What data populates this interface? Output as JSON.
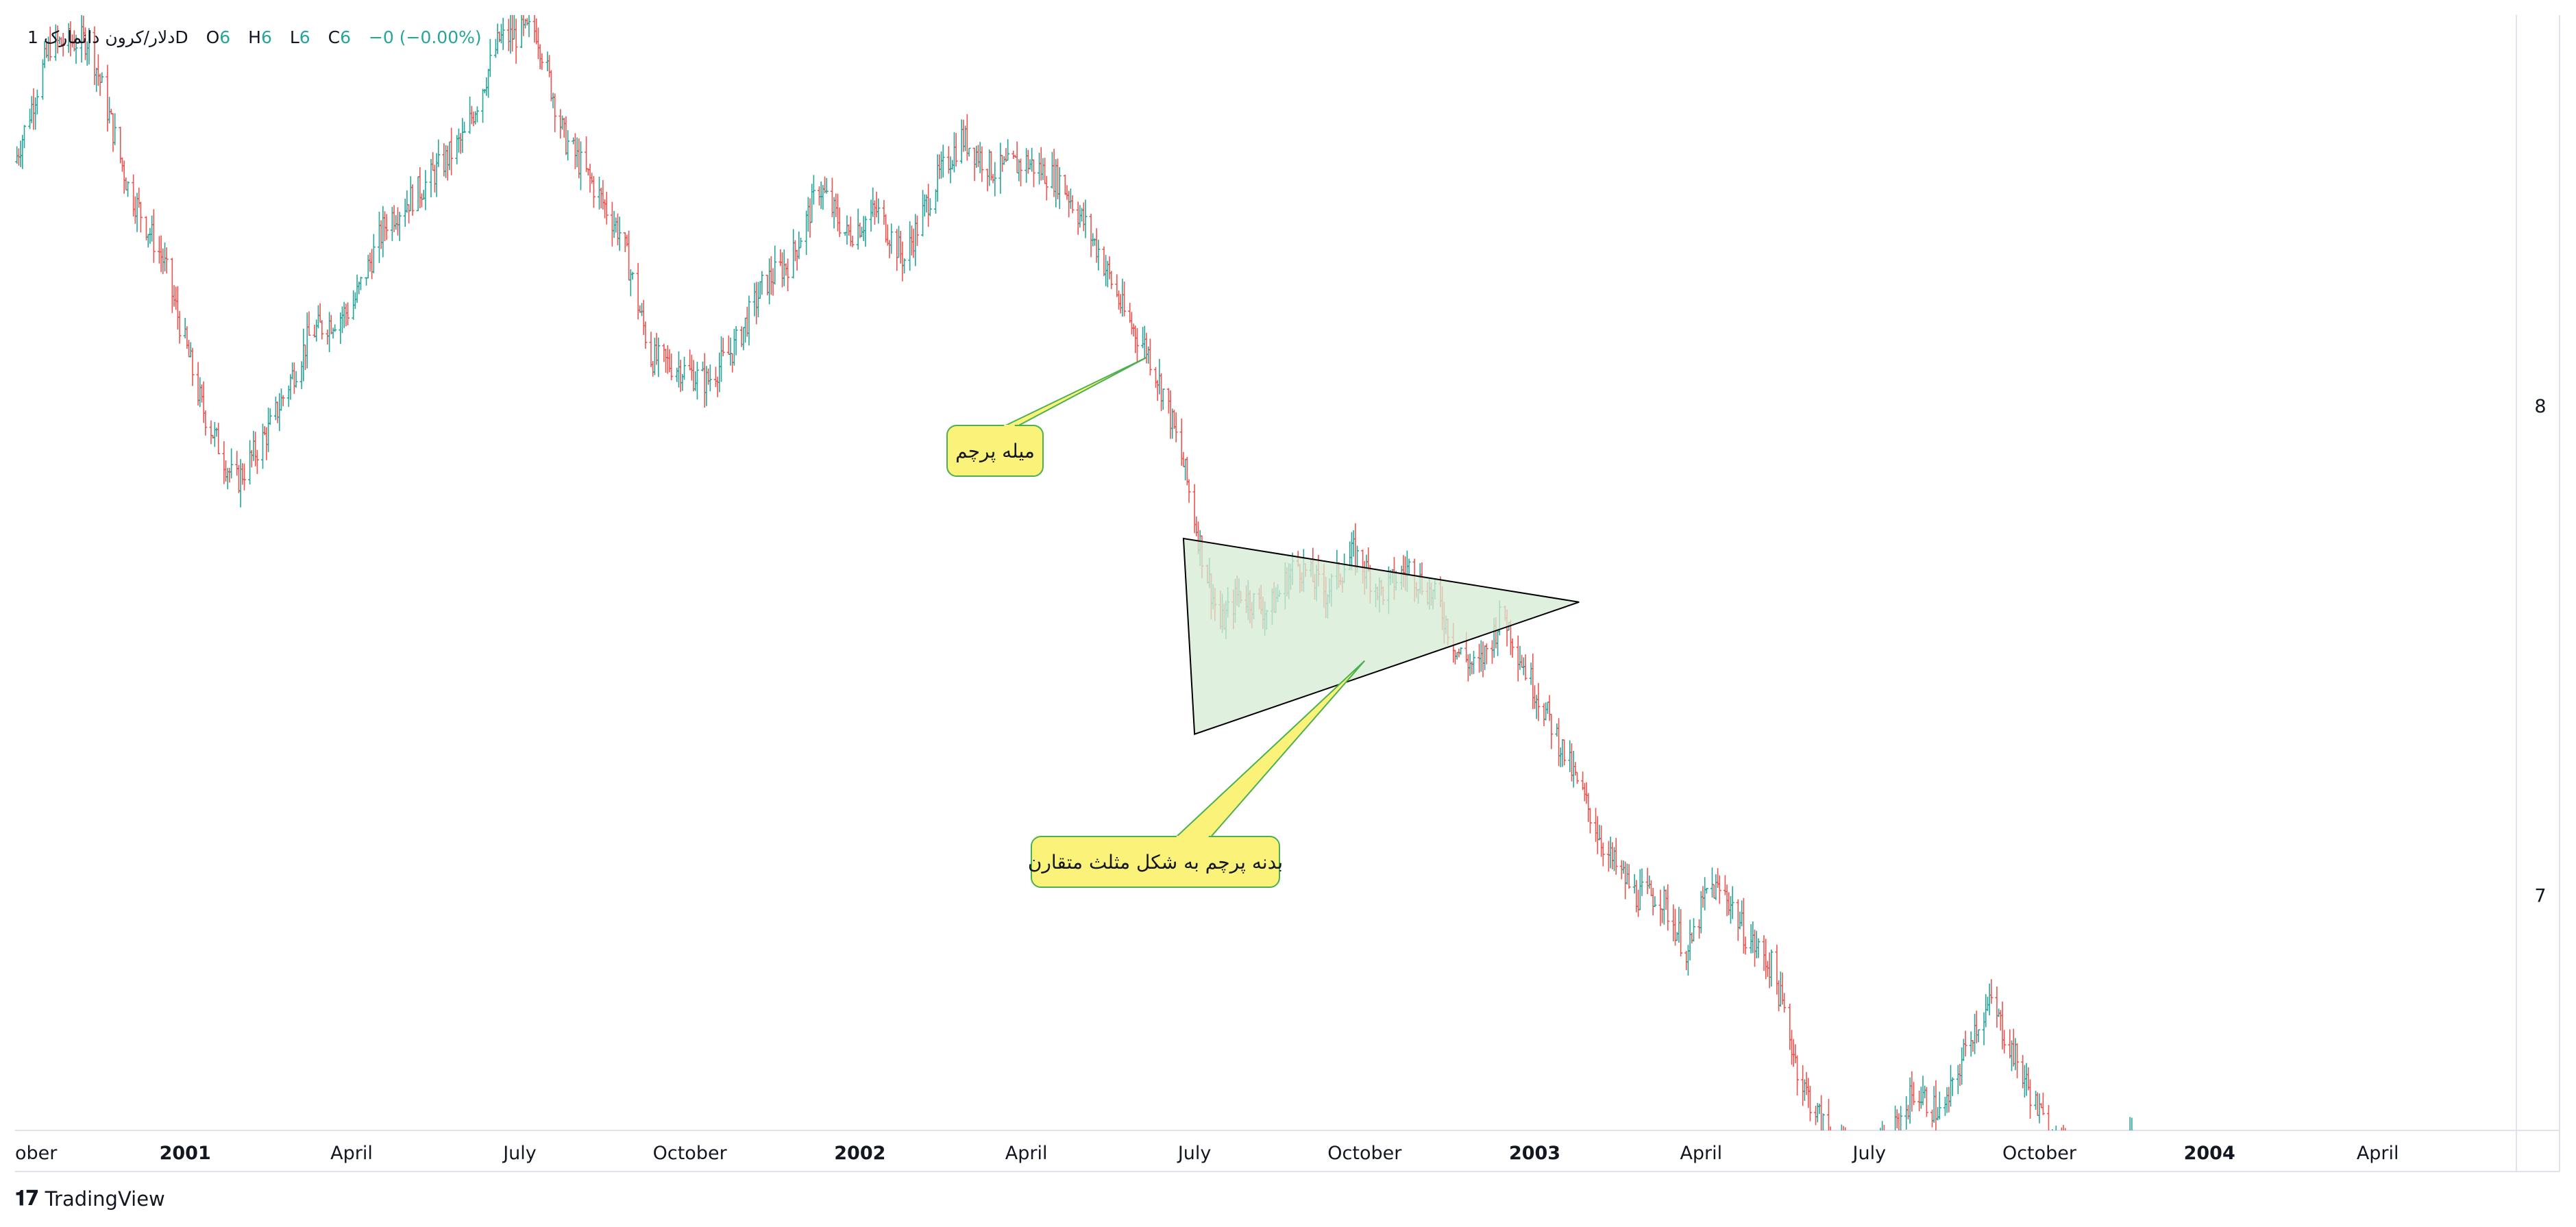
{
  "legend": {
    "symbol": "دلار/کرون دانمارک",
    "interval": "1D",
    "open_label": "O",
    "open_value": "6",
    "high_label": "H",
    "high_value": "6",
    "low_label": "L",
    "low_value": "6",
    "close_label": "C",
    "close_value": "6",
    "change": "−0 (−0.00%)"
  },
  "brand": {
    "name": "TradingView"
  },
  "annotations": {
    "flag_pole": "میله پرچم",
    "flag_body": "بدنه پرچم به شکل مثلث متقارن"
  },
  "chart_data": {
    "type": "bar",
    "title": "",
    "xlabel": "",
    "ylabel": "",
    "x_ticks": [
      {
        "label": "ober",
        "date": "2000-10-01",
        "bold": false
      },
      {
        "label": "2001",
        "date": "2001-01-01",
        "bold": true
      },
      {
        "label": "April",
        "date": "2001-04-01",
        "bold": false
      },
      {
        "label": "July",
        "date": "2001-07-01",
        "bold": false
      },
      {
        "label": "October",
        "date": "2001-10-01",
        "bold": false
      },
      {
        "label": "2002",
        "date": "2002-01-01",
        "bold": true
      },
      {
        "label": "April",
        "date": "2002-04-01",
        "bold": false
      },
      {
        "label": "July",
        "date": "2002-07-01",
        "bold": false
      },
      {
        "label": "October",
        "date": "2002-10-01",
        "bold": false
      },
      {
        "label": "2003",
        "date": "2003-01-01",
        "bold": true
      },
      {
        "label": "April",
        "date": "2003-04-01",
        "bold": false
      },
      {
        "label": "July",
        "date": "2003-07-01",
        "bold": false
      },
      {
        "label": "October",
        "date": "2003-10-01",
        "bold": false
      },
      {
        "label": "2004",
        "date": "2004-01-01",
        "bold": true
      },
      {
        "label": "April",
        "date": "2004-04-01",
        "bold": false
      }
    ],
    "y_ticks": [
      8,
      7
    ],
    "xlim": [
      "2000-10-01",
      "2004-06-15"
    ],
    "ylim": [
      6.52,
      8.8
    ],
    "price_path": [
      [
        "2000-10-01",
        8.5
      ],
      [
        "2000-10-20",
        8.74
      ],
      [
        "2000-11-10",
        8.75
      ],
      [
        "2000-12-01",
        8.45
      ],
      [
        "2000-12-20",
        8.3
      ],
      [
        "2001-01-10",
        8.0
      ],
      [
        "2001-01-28",
        7.84
      ],
      [
        "2001-02-15",
        7.95
      ],
      [
        "2001-03-10",
        8.15
      ],
      [
        "2001-04-01",
        8.2
      ],
      [
        "2001-04-20",
        8.38
      ],
      [
        "2001-05-10",
        8.45
      ],
      [
        "2001-06-01",
        8.55
      ],
      [
        "2001-06-20",
        8.75
      ],
      [
        "2001-07-10",
        8.77
      ],
      [
        "2001-07-25",
        8.55
      ],
      [
        "2001-08-10",
        8.45
      ],
      [
        "2001-08-25",
        8.35
      ],
      [
        "2001-09-10",
        8.1
      ],
      [
        "2001-09-25",
        8.08
      ],
      [
        "2001-10-10",
        8.05
      ],
      [
        "2001-10-25",
        8.12
      ],
      [
        "2001-11-10",
        8.25
      ],
      [
        "2001-11-25",
        8.3
      ],
      [
        "2001-12-10",
        8.45
      ],
      [
        "2001-12-25",
        8.35
      ],
      [
        "2002-01-10",
        8.4
      ],
      [
        "2002-01-25",
        8.3
      ],
      [
        "2002-02-10",
        8.45
      ],
      [
        "2002-02-25",
        8.55
      ],
      [
        "2002-03-15",
        8.48
      ],
      [
        "2002-04-01",
        8.5
      ],
      [
        "2002-04-20",
        8.46
      ],
      [
        "2002-05-10",
        8.32
      ],
      [
        "2002-05-25",
        8.18
      ],
      [
        "2002-06-05",
        8.12
      ],
      [
        "2002-06-15",
        8.02
      ],
      [
        "2002-06-25",
        7.88
      ],
      [
        "2002-07-05",
        7.7
      ],
      [
        "2002-07-15",
        7.55
      ],
      [
        "2002-07-25",
        7.62
      ],
      [
        "2002-08-10",
        7.58
      ],
      [
        "2002-08-25",
        7.68
      ],
      [
        "2002-09-10",
        7.62
      ],
      [
        "2002-09-25",
        7.7
      ],
      [
        "2002-10-10",
        7.62
      ],
      [
        "2002-10-25",
        7.67
      ],
      [
        "2002-11-10",
        7.6
      ],
      [
        "2002-11-20",
        7.5
      ],
      [
        "2002-12-01",
        7.46
      ],
      [
        "2002-12-15",
        7.58
      ],
      [
        "2002-12-25",
        7.48
      ],
      [
        "2003-01-10",
        7.35
      ],
      [
        "2003-01-25",
        7.22
      ],
      [
        "2003-02-10",
        7.08
      ],
      [
        "2003-02-25",
        7.0
      ],
      [
        "2003-03-10",
        7.0
      ],
      [
        "2003-03-25",
        6.88
      ],
      [
        "2003-04-05",
        7.02
      ],
      [
        "2003-04-15",
        7.0
      ],
      [
        "2003-04-25",
        6.92
      ],
      [
        "2003-05-10",
        6.85
      ],
      [
        "2003-05-25",
        6.62
      ],
      [
        "2003-06-10",
        6.5
      ],
      [
        "2003-06-25",
        6.46
      ],
      [
        "2003-07-10",
        6.48
      ],
      [
        "2003-07-25",
        6.6
      ],
      [
        "2003-08-10",
        6.55
      ],
      [
        "2003-08-25",
        6.72
      ],
      [
        "2003-09-05",
        6.78
      ],
      [
        "2003-09-20",
        6.65
      ],
      [
        "2003-10-05",
        6.52
      ],
      [
        "2003-10-20",
        6.46
      ],
      [
        "2003-11-10",
        6.44
      ],
      [
        "2003-11-20",
        6.5
      ]
    ],
    "pattern": {
      "triangle": [
        [
          "2002-06-25",
          7.73
        ],
        [
          "2002-07-01",
          7.33
        ],
        [
          "2003-01-25",
          7.6
        ]
      ],
      "pole_anchor": [
        "2002-06-05",
        8.1
      ],
      "body_anchor": [
        "2002-10-01",
        7.48
      ]
    },
    "colors": {
      "up": "#26a69a",
      "down": "#ef5350",
      "triangle_fill": "#d5ebd3",
      "triangle_stroke": "#000000",
      "callout_fill": "#fbf27a",
      "callout_stroke": "#4caf50",
      "axis_text": "#131722",
      "grid_border": "#e0e3eb"
    },
    "grid": false,
    "legend_position": "top-left"
  }
}
